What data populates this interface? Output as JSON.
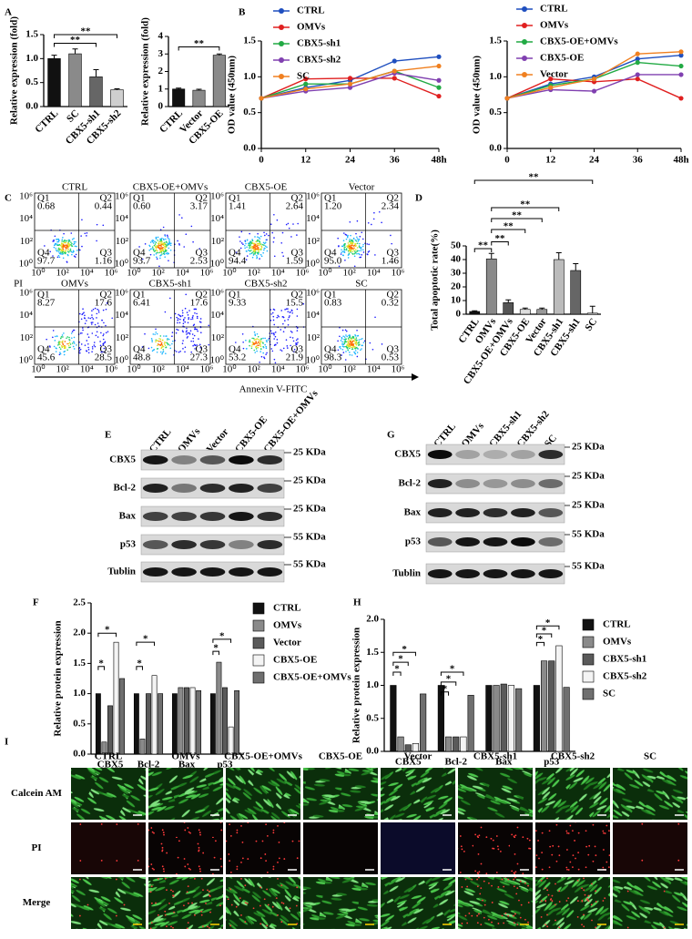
{
  "panel_labels": [
    "A",
    "B",
    "C",
    "D",
    "E",
    "F",
    "G",
    "H",
    "I"
  ],
  "chart_data": [
    {
      "type": "bar",
      "ylabel": "Relative expression (fold)",
      "categories": [
        "CTRL",
        "SC",
        "CBX5-sh1",
        "CBX5-sh2"
      ],
      "values": [
        1.0,
        1.1,
        0.62,
        0.35
      ],
      "errors": [
        0.07,
        0.1,
        0.15,
        0.02
      ],
      "colors": [
        "#111111",
        "#8a8a8a",
        "#666666",
        "#cfcfcf"
      ],
      "ylim": [
        0,
        1.5
      ],
      "yticks": [
        {
          "value": 0,
          "label": "0.0"
        },
        0.5,
        {
          "value": 1,
          "label": "1.0"
        },
        1.5
      ],
      "annotations": [
        "**",
        "**"
      ]
    },
    {
      "type": "bar",
      "ylabel": "Relative expression (fold)",
      "categories": [
        "CTRL",
        "Vector",
        "CBX5-OE"
      ],
      "values": [
        1.0,
        0.93,
        2.93
      ],
      "errors": [
        0.05,
        0.06,
        0.07
      ],
      "colors": [
        "#111111",
        "#8a8a8a",
        "#8a8a8a"
      ],
      "ylim": [
        0,
        4
      ],
      "yticks": [
        0,
        1,
        2,
        3,
        4
      ],
      "annotations": [
        "**"
      ]
    },
    {
      "type": "line",
      "ylabel": "OD value (450nm)",
      "x": [
        0,
        12,
        24,
        36,
        48
      ],
      "xlim": [
        0,
        48
      ],
      "xticks": [
        0,
        12,
        24,
        36,
        {
          "value": 48,
          "label": "48h"
        }
      ],
      "ylim": [
        0,
        1.5
      ],
      "yticks": [
        {
          "value": 0,
          "label": "0.0"
        },
        0.5,
        {
          "value": 1,
          "label": "1.0"
        },
        1.5
      ],
      "series": [
        {
          "name": "CTRL",
          "color": "#1f4fbf",
          "values": [
            0.7,
            0.85,
            0.95,
            1.22,
            1.28
          ]
        },
        {
          "name": "OMVs",
          "color": "#e02020",
          "values": [
            0.7,
            0.97,
            0.98,
            0.98,
            0.73
          ]
        },
        {
          "name": "CBX5-sh1",
          "color": "#22aa44",
          "values": [
            0.7,
            0.9,
            0.9,
            1.08,
            0.85
          ]
        },
        {
          "name": "CBX5-sh2",
          "color": "#8040b0",
          "values": [
            0.7,
            0.8,
            0.85,
            1.05,
            0.95
          ]
        },
        {
          "name": "SC",
          "color": "#f08020",
          "values": [
            0.7,
            0.83,
            0.9,
            1.08,
            1.15
          ]
        }
      ]
    },
    {
      "type": "line",
      "ylabel": "OD value (450nm)",
      "x": [
        0,
        12,
        24,
        36,
        48
      ],
      "xlim": [
        0,
        48
      ],
      "xticks": [
        0,
        12,
        24,
        36,
        {
          "value": 48,
          "label": "48h"
        }
      ],
      "ylim": [
        0,
        1.5
      ],
      "yticks": [
        {
          "value": 0,
          "label": "0.0"
        },
        0.5,
        {
          "value": 1,
          "label": "1.0"
        },
        1.5
      ],
      "series": [
        {
          "name": "CTRL",
          "color": "#1f4fbf",
          "values": [
            0.7,
            0.9,
            1.0,
            1.25,
            1.3
          ]
        },
        {
          "name": "OMVs",
          "color": "#e02020",
          "values": [
            0.7,
            0.97,
            0.93,
            0.97,
            0.7
          ]
        },
        {
          "name": "CBX5-OE+OMVs",
          "color": "#22aa44",
          "values": [
            0.7,
            0.88,
            0.97,
            1.2,
            1.15
          ]
        },
        {
          "name": "CBX5-OE",
          "color": "#8040b0",
          "values": [
            0.7,
            0.82,
            0.8,
            1.03,
            1.03
          ]
        },
        {
          "name": "Vector",
          "color": "#f08020",
          "values": [
            0.7,
            0.85,
            0.97,
            1.32,
            1.35
          ]
        }
      ]
    },
    {
      "type": "bar",
      "ylabel": "Total apoptotic rate(%)",
      "categories": [
        "CTRL",
        "OMVs",
        "CBX5-OE+OMVs",
        "CBX5-OE",
        "Vector",
        "CBX5-sh1",
        "CBX5-sh1",
        "SC"
      ],
      "values": [
        2,
        40.5,
        8.5,
        3.5,
        3.5,
        40,
        32,
        0.8
      ],
      "errors": [
        0.5,
        4,
        2,
        1,
        1,
        5,
        5,
        5
      ],
      "colors": [
        "#111111",
        "#8a8a8a",
        "#555555",
        "#dddddd",
        "#999999",
        "#bbbbbb",
        "#666666",
        "#ffffff"
      ],
      "ylim": [
        0,
        50
      ],
      "yticks": [
        0,
        10,
        20,
        30,
        40,
        50
      ],
      "annotations": [
        "**",
        "**",
        "**",
        "**",
        "**",
        "**"
      ]
    },
    {
      "type": "grouped_bar",
      "ylabel": "Relative protein expression",
      "categories": [
        "CBX5",
        "Bcl-2",
        "Bax",
        "p53"
      ],
      "ylim": [
        0,
        2.5
      ],
      "yticks": [
        {
          "value": 0,
          "label": "0.0"
        },
        0.5,
        {
          "value": 1,
          "label": "1.0"
        },
        1.5,
        {
          "value": 2,
          "label": "2.0"
        },
        2.5
      ],
      "annotations": [
        "*",
        "*",
        "*",
        "*",
        "*",
        "*"
      ],
      "series": [
        {
          "name": "CTRL",
          "color": "#111111",
          "values": [
            1,
            1,
            1,
            1
          ]
        },
        {
          "name": "OMVs",
          "color": "#8a8a8a",
          "values": [
            0.2,
            0.25,
            1.1,
            1.52
          ]
        },
        {
          "name": "Vector",
          "color": "#5a5a5a",
          "values": [
            0.8,
            1.0,
            1.1,
            1.1
          ]
        },
        {
          "name": "CBX5-OE",
          "color": "#f4f4f4",
          "values": [
            1.85,
            1.3,
            1.1,
            0.45
          ]
        },
        {
          "name": "CBX5-OE+OMVs",
          "color": "#6f6f6f",
          "values": [
            1.25,
            1.0,
            1.05,
            1.05
          ]
        }
      ]
    },
    {
      "type": "grouped_bar",
      "ylabel": "Relative protein expression",
      "categories": [
        "CBX5",
        "Bcl-2",
        "Bax",
        "p53"
      ],
      "ylim": [
        0,
        2
      ],
      "yticks": [
        {
          "value": 0,
          "label": "0.0"
        },
        0.5,
        {
          "value": 1,
          "label": "1.0"
        },
        1.5,
        {
          "value": 2,
          "label": "2.0"
        }
      ],
      "annotations": [
        "*",
        "*",
        "*",
        "*",
        "*",
        "*",
        "*",
        "*",
        "*"
      ],
      "series": [
        {
          "name": "CTRL",
          "color": "#111111",
          "values": [
            1,
            1,
            1,
            1
          ]
        },
        {
          "name": "OMVs",
          "color": "#8a8a8a",
          "values": [
            0.22,
            0.22,
            1.0,
            1.37
          ]
        },
        {
          "name": "CBX5-sh1",
          "color": "#5a5a5a",
          "values": [
            0.1,
            0.22,
            1.02,
            1.37
          ]
        },
        {
          "name": "CBX5-sh2",
          "color": "#f4f4f4",
          "values": [
            0.12,
            0.22,
            1.0,
            1.6
          ]
        },
        {
          "name": "SC",
          "color": "#6f6f6f",
          "values": [
            0.87,
            0.85,
            0.95,
            0.97
          ]
        }
      ]
    }
  ],
  "flow": {
    "x_label": "Annexin V-FITC",
    "y_label": "PI",
    "quadrant_names": [
      "Q1",
      "Q2",
      "Q3",
      "Q4"
    ],
    "ticks": [
      "10⁰",
      "10²",
      "10⁴",
      "10⁶"
    ],
    "plots": [
      {
        "title": "CTRL",
        "quadrants": [
          "0.68",
          "0.44",
          "1.16",
          "97.7"
        ]
      },
      {
        "title": "CBX5-OE+OMVs",
        "quadrants": [
          "0.60",
          "3.17",
          "2.53",
          "93.7"
        ]
      },
      {
        "title": "CBX5-OE",
        "quadrants": [
          "1.41",
          "2.64",
          "1.59",
          "94.4"
        ]
      },
      {
        "title": "Vector",
        "quadrants": [
          "1.20",
          "2.34",
          "1.46",
          "95.0"
        ]
      },
      {
        "title": "OMVs",
        "quadrants": [
          "8.27",
          "17.6",
          "28.5",
          "45.6"
        ]
      },
      {
        "title": "CBX5-sh1",
        "quadrants": [
          "6.41",
          "17.6",
          "27.3",
          "48.8"
        ]
      },
      {
        "title": "CBX5-sh2",
        "quadrants": [
          "9.33",
          "15.5",
          "21.9",
          "53.2"
        ]
      },
      {
        "title": "SC",
        "quadrants": [
          "0.83",
          "0.32",
          "0.53",
          "98.3"
        ]
      }
    ]
  },
  "blot_e": {
    "columns": [
      "CTRL",
      "OMVs",
      "Vector",
      "CBX5-OE",
      "CBX5-OE+OMVs"
    ],
    "rows": [
      "CBX5",
      "Bcl-2",
      "Bax",
      "p53",
      "Tublin"
    ],
    "sizes": [
      "25 KDa",
      "25 KDa",
      "25 KDa",
      "55 KDa",
      "55 KDa"
    ]
  },
  "blot_g": {
    "columns": [
      "CTRL",
      "OMVs",
      "CBX5-sh1",
      "CBX5-sh2",
      "SC"
    ],
    "rows": [
      "CBX5",
      "Bcl-2",
      "Bax",
      "p53",
      "Tublin"
    ],
    "sizes": [
      "25 KDa",
      "25 KDa",
      "25 KDa",
      "55 KDa",
      "55 KDa"
    ]
  },
  "imaging": {
    "columns": [
      "CTRL",
      "OMVs",
      "CBX5-OE+OMVs",
      "CBX5-OE",
      "Vector",
      "CBX5-sh1",
      "CBX5-sh2",
      "SC"
    ],
    "rows": [
      "Calcein AM",
      "PI",
      "Merge"
    ]
  }
}
